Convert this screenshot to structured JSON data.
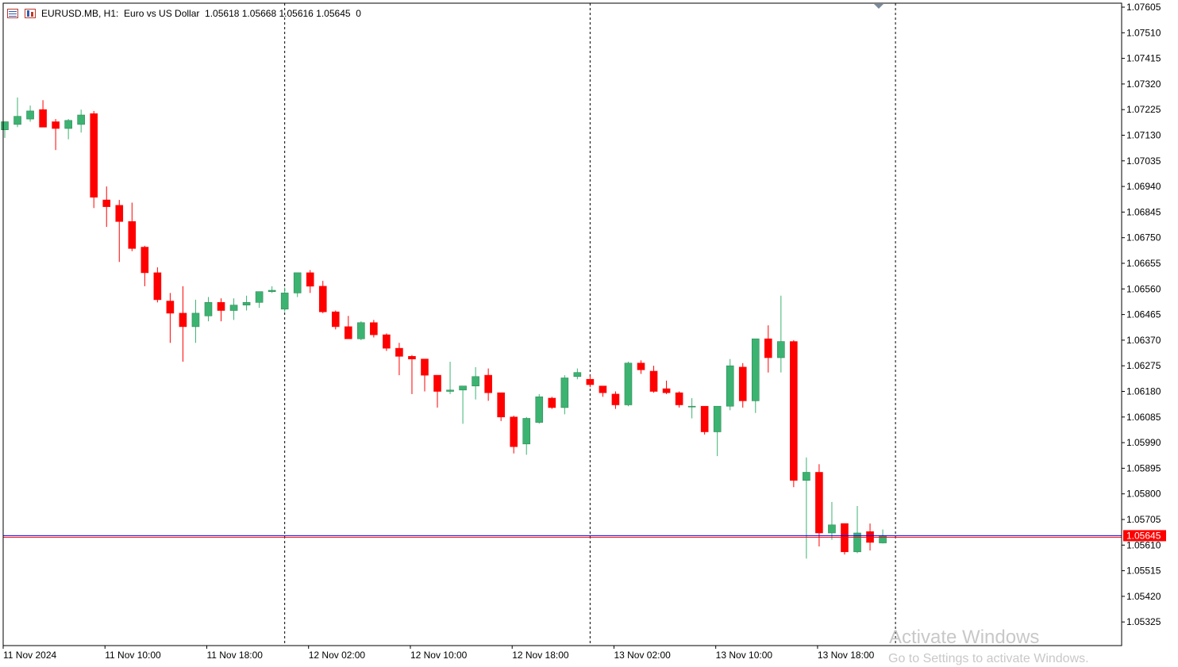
{
  "header": {
    "symbol_line": "EURUSD.MB, H1:  Euro vs US Dollar  1.05618 1.05668 1.05616 1.05645  0"
  },
  "watermark": {
    "line1": "Activate Windows",
    "line2": "Go to Settings to activate Windows."
  },
  "colors": {
    "bull": "#3cb371",
    "bear": "#ff0000",
    "bid_line": "#0000ff",
    "ask_line": "#ff0000",
    "price_tag": "#ff0000",
    "grid_line": "#000000"
  },
  "chart_data": {
    "type": "candlestick",
    "title": "EURUSD.MB, H1: Euro vs US Dollar",
    "timeframe": "H1",
    "current_price": "1.05645",
    "y_ticks": [
      "1.07605",
      "1.07510",
      "1.07415",
      "1.07320",
      "1.07225",
      "1.07130",
      "1.07035",
      "1.06940",
      "1.06845",
      "1.06750",
      "1.06655",
      "1.06560",
      "1.06465",
      "1.06370",
      "1.06275",
      "1.06180",
      "1.06085",
      "1.05990",
      "1.05895",
      "1.05800",
      "1.05705",
      "1.05610",
      "1.05515",
      "1.05420",
      "1.05325"
    ],
    "ylim": [
      1.0526,
      1.0763
    ],
    "x_tick_labels": [
      "11 Nov 2024",
      "11 Nov 10:00",
      "11 Nov 18:00",
      "12 Nov 02:00",
      "12 Nov 10:00",
      "12 Nov 18:00",
      "13 Nov 02:00",
      "13 Nov 10:00",
      "13 Nov 18:00"
    ],
    "x_tick_bar_index": [
      0,
      8,
      16,
      24,
      32,
      40,
      48,
      56,
      64
    ],
    "day_separators_bar_index": [
      22,
      46,
      70
    ],
    "candles": [
      {
        "o": 1.0715,
        "h": 1.0718,
        "l": 1.0712,
        "c": 1.0718
      },
      {
        "o": 1.0717,
        "h": 1.0727,
        "l": 1.0716,
        "c": 1.072
      },
      {
        "o": 1.0719,
        "h": 1.0724,
        "l": 1.0718,
        "c": 1.0722
      },
      {
        "o": 1.07225,
        "h": 1.0726,
        "l": 1.0716,
        "c": 1.0716
      },
      {
        "o": 1.0718,
        "h": 1.0719,
        "l": 1.07075,
        "c": 1.07155
      },
      {
        "o": 1.07155,
        "h": 1.0719,
        "l": 1.07115,
        "c": 1.07185
      },
      {
        "o": 1.0717,
        "h": 1.07225,
        "l": 1.0714,
        "c": 1.07205
      },
      {
        "o": 1.0721,
        "h": 1.0722,
        "l": 1.0686,
        "c": 1.069
      },
      {
        "o": 1.0689,
        "h": 1.0694,
        "l": 1.0679,
        "c": 1.06865
      },
      {
        "o": 1.0687,
        "h": 1.0689,
        "l": 1.0666,
        "c": 1.0681
      },
      {
        "o": 1.0681,
        "h": 1.0688,
        "l": 1.067,
        "c": 1.0671
      },
      {
        "o": 1.06715,
        "h": 1.0672,
        "l": 1.0657,
        "c": 1.0662
      },
      {
        "o": 1.0662,
        "h": 1.0664,
        "l": 1.0651,
        "c": 1.0652
      },
      {
        "o": 1.06515,
        "h": 1.06545,
        "l": 1.0636,
        "c": 1.0647
      },
      {
        "o": 1.0647,
        "h": 1.0657,
        "l": 1.0629,
        "c": 1.0642
      },
      {
        "o": 1.0642,
        "h": 1.0652,
        "l": 1.0636,
        "c": 1.0647
      },
      {
        "o": 1.0646,
        "h": 1.0653,
        "l": 1.0644,
        "c": 1.0651
      },
      {
        "o": 1.0651,
        "h": 1.06525,
        "l": 1.0644,
        "c": 1.0648
      },
      {
        "o": 1.0648,
        "h": 1.06525,
        "l": 1.06445,
        "c": 1.065
      },
      {
        "o": 1.065,
        "h": 1.06535,
        "l": 1.0648,
        "c": 1.0651
      },
      {
        "o": 1.0651,
        "h": 1.0655,
        "l": 1.0649,
        "c": 1.0655
      },
      {
        "o": 1.0655,
        "h": 1.0657,
        "l": 1.06545,
        "c": 1.06555
      },
      {
        "o": 1.06485,
        "h": 1.06565,
        "l": 1.06475,
        "c": 1.06545
      },
      {
        "o": 1.06545,
        "h": 1.0662,
        "l": 1.0653,
        "c": 1.0662
      },
      {
        "o": 1.0662,
        "h": 1.0663,
        "l": 1.06545,
        "c": 1.0657
      },
      {
        "o": 1.0657,
        "h": 1.0659,
        "l": 1.0647,
        "c": 1.06475
      },
      {
        "o": 1.06475,
        "h": 1.0648,
        "l": 1.0641,
        "c": 1.0642
      },
      {
        "o": 1.0642,
        "h": 1.0646,
        "l": 1.06375,
        "c": 1.06375
      },
      {
        "o": 1.06375,
        "h": 1.0644,
        "l": 1.0637,
        "c": 1.06435
      },
      {
        "o": 1.06435,
        "h": 1.06445,
        "l": 1.0638,
        "c": 1.0639
      },
      {
        "o": 1.0639,
        "h": 1.06395,
        "l": 1.0633,
        "c": 1.0634
      },
      {
        "o": 1.0634,
        "h": 1.0636,
        "l": 1.0624,
        "c": 1.0631
      },
      {
        "o": 1.0631,
        "h": 1.06315,
        "l": 1.0617,
        "c": 1.063
      },
      {
        "o": 1.063,
        "h": 1.063,
        "l": 1.0618,
        "c": 1.0624
      },
      {
        "o": 1.0624,
        "h": 1.0624,
        "l": 1.0612,
        "c": 1.0618
      },
      {
        "o": 1.0618,
        "h": 1.0629,
        "l": 1.0617,
        "c": 1.06185
      },
      {
        "o": 1.06185,
        "h": 1.062,
        "l": 1.0606,
        "c": 1.062
      },
      {
        "o": 1.062,
        "h": 1.0627,
        "l": 1.0615,
        "c": 1.06235
      },
      {
        "o": 1.0624,
        "h": 1.06265,
        "l": 1.06145,
        "c": 1.06175
      },
      {
        "o": 1.06175,
        "h": 1.06175,
        "l": 1.0607,
        "c": 1.06085
      },
      {
        "o": 1.06085,
        "h": 1.0609,
        "l": 1.0595,
        "c": 1.05975
      },
      {
        "o": 1.05985,
        "h": 1.06085,
        "l": 1.05945,
        "c": 1.0608
      },
      {
        "o": 1.06065,
        "h": 1.0617,
        "l": 1.0606,
        "c": 1.0616
      },
      {
        "o": 1.06155,
        "h": 1.0616,
        "l": 1.06115,
        "c": 1.0612
      },
      {
        "o": 1.0612,
        "h": 1.0624,
        "l": 1.06095,
        "c": 1.0623
      },
      {
        "o": 1.06235,
        "h": 1.06265,
        "l": 1.06225,
        "c": 1.0625
      },
      {
        "o": 1.06225,
        "h": 1.0624,
        "l": 1.06195,
        "c": 1.06205
      },
      {
        "o": 1.062,
        "h": 1.062,
        "l": 1.0616,
        "c": 1.06175
      },
      {
        "o": 1.0617,
        "h": 1.0618,
        "l": 1.06115,
        "c": 1.0613
      },
      {
        "o": 1.0613,
        "h": 1.0629,
        "l": 1.06125,
        "c": 1.06285
      },
      {
        "o": 1.06285,
        "h": 1.06295,
        "l": 1.06245,
        "c": 1.0626
      },
      {
        "o": 1.06255,
        "h": 1.06275,
        "l": 1.06175,
        "c": 1.0618
      },
      {
        "o": 1.0619,
        "h": 1.0622,
        "l": 1.0617,
        "c": 1.06175
      },
      {
        "o": 1.06175,
        "h": 1.0618,
        "l": 1.0612,
        "c": 1.0613
      },
      {
        "o": 1.06125,
        "h": 1.06155,
        "l": 1.0608,
        "c": 1.06125
      },
      {
        "o": 1.06125,
        "h": 1.06125,
        "l": 1.0602,
        "c": 1.0603
      },
      {
        "o": 1.0603,
        "h": 1.06125,
        "l": 1.0594,
        "c": 1.06125
      },
      {
        "o": 1.06125,
        "h": 1.063,
        "l": 1.0611,
        "c": 1.06275
      },
      {
        "o": 1.0627,
        "h": 1.06285,
        "l": 1.0612,
        "c": 1.06145
      },
      {
        "o": 1.06145,
        "h": 1.06375,
        "l": 1.061,
        "c": 1.06375
      },
      {
        "o": 1.06375,
        "h": 1.06425,
        "l": 1.0625,
        "c": 1.06305
      },
      {
        "o": 1.06305,
        "h": 1.06535,
        "l": 1.0625,
        "c": 1.06365
      },
      {
        "o": 1.06365,
        "h": 1.0637,
        "l": 1.05825,
        "c": 1.0585
      },
      {
        "o": 1.0585,
        "h": 1.05935,
        "l": 1.0556,
        "c": 1.0588
      },
      {
        "o": 1.0588,
        "h": 1.0591,
        "l": 1.05605,
        "c": 1.05655
      },
      {
        "o": 1.05655,
        "h": 1.0577,
        "l": 1.0563,
        "c": 1.05685
      },
      {
        "o": 1.0569,
        "h": 1.0569,
        "l": 1.05575,
        "c": 1.05585
      },
      {
        "o": 1.05585,
        "h": 1.05755,
        "l": 1.0558,
        "c": 1.05655
      },
      {
        "o": 1.0566,
        "h": 1.0569,
        "l": 1.0559,
        "c": 1.0562
      },
      {
        "o": 1.05618,
        "h": 1.05668,
        "l": 1.05616,
        "c": 1.05645
      }
    ]
  }
}
